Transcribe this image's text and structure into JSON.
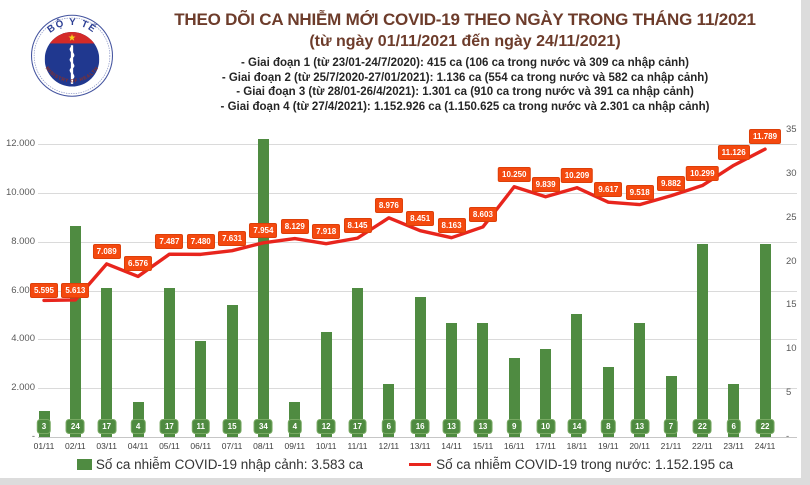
{
  "logo": {
    "top_text": "BỘ Y TẾ",
    "bottom_text": "MINISTRY OF HEALTH"
  },
  "header": {
    "title": "THEO DÕI CA NHIỄM MỚI COVID-19 THEO NGÀY TRONG THÁNG 11/2021",
    "subtitle": "(từ ngày 01/11/2021 đến ngày 24/11/2021)",
    "stages": [
      "- Giai đoạn 1 (từ 23/01-24/7/2020): 415 ca (106 ca trong nước và 309 ca nhập cảnh)",
      "- Giai đoạn 2 (từ 25/7/2020-27/01/2021): 1.136 ca (554 ca trong nước và 582 ca nhập cảnh)",
      "- Giai đoạn 3 (từ 28/01-26/4/2021): 1.301 ca (910 ca trong nước và 391 ca nhập cảnh)",
      "- Giai đoạn 4 (từ 27/4/2021): 1.152.926 ca (1.150.625 ca trong nước và 2.301 ca nhập cảnh)"
    ]
  },
  "chart_data": {
    "type": "bar+line dual-axis combo",
    "categories": [
      "01/11",
      "02/11",
      "03/11",
      "04/11",
      "05/11",
      "06/11",
      "07/11",
      "08/11",
      "09/11",
      "10/11",
      "11/11",
      "12/11",
      "13/11",
      "14/11",
      "15/11",
      "16/11",
      "17/11",
      "18/11",
      "19/11",
      "20/11",
      "21/11",
      "22/11",
      "23/11",
      "24/11"
    ],
    "series": [
      {
        "name": "Số ca nhiễm COVID-19 nhập cảnh",
        "type": "bar",
        "axis": "right",
        "color": "#4f8b41",
        "values": [
          3,
          24,
          17,
          4,
          17,
          11,
          15,
          34,
          4,
          12,
          17,
          6,
          16,
          13,
          13,
          9,
          10,
          14,
          8,
          13,
          7,
          22,
          6,
          22
        ]
      },
      {
        "name": "Số ca nhiễm COVID-19 trong nước",
        "type": "line",
        "axis": "left",
        "color": "#e8251d",
        "values": [
          5595,
          5613,
          7089,
          6576,
          7487,
          7480,
          7631,
          7954,
          8129,
          7918,
          8145,
          8976,
          8451,
          8163,
          8603,
          10250,
          9839,
          10209,
          9617,
          9518,
          9882,
          10299,
          11126,
          11789
        ],
        "labels": [
          "5.595",
          "5.613",
          "7.089",
          "6.576",
          "7.487",
          "7.480",
          "7.631",
          "7.954",
          "8.129",
          "7.918",
          "8.145",
          "8.976",
          "8.451",
          "8.163",
          "8.603",
          "10.250",
          "9.839",
          "10.209",
          "9.617",
          "9.518",
          "9.882",
          "10.299",
          "11.126",
          "11.789"
        ]
      }
    ],
    "left_axis": {
      "range": [
        0,
        12000
      ],
      "tick_values": [
        0,
        2000,
        4000,
        6000,
        8000,
        10000,
        12000
      ],
      "tick_labels": [
        "-",
        "2.000",
        "4.000",
        "6.000",
        "8.000",
        "10.000",
        "12.000"
      ],
      "gridlines": true
    },
    "right_axis": {
      "range": [
        0,
        35
      ],
      "tick_values": [
        0,
        5,
        10,
        15,
        20,
        25,
        30,
        35
      ],
      "tick_labels": [
        "-",
        "5",
        "10",
        "15",
        "20",
        "25",
        "30",
        "35"
      ]
    },
    "legend_position": "bottom"
  },
  "legend": {
    "items": [
      {
        "label": "Số ca nhiễm COVID-19 nhập cảnh: 3.583 ca",
        "swatch": "green-square",
        "color": "#4f8b41"
      },
      {
        "label": "Số ca nhiễm COVID-19 trong nước: 1.152.195 ca",
        "swatch": "red-line",
        "color": "#e8251d"
      }
    ]
  },
  "colors": {
    "bar_green": "#4f8b41",
    "line_red": "#e8251d",
    "point_label_bg": "#f4490f",
    "title_maroon": "#6d3c2b"
  }
}
